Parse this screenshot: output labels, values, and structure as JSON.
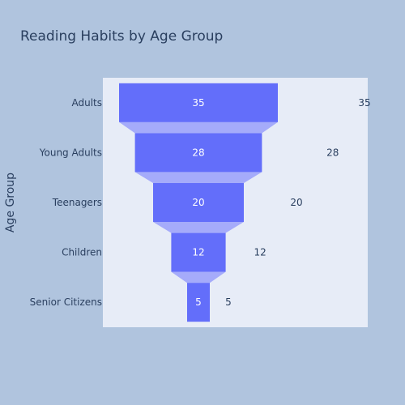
{
  "colors": {
    "paper_bg": "#b0c4de",
    "plot_bg": "#e7ecf7",
    "bar": "#636efa",
    "connector": "#a5abfa",
    "text": "#2a3f5f",
    "inside_text": "#ffffff"
  },
  "chart_data": {
    "type": "funnel",
    "title": "Reading Habits by Age Group",
    "xlabel": "",
    "ylabel": "Age Group",
    "categories": [
      "Adults",
      "Young Adults",
      "Teenagers",
      "Children",
      "Senior Citizens"
    ],
    "values": [
      35,
      28,
      20,
      12,
      5
    ],
    "grid": false,
    "legend": "none"
  }
}
